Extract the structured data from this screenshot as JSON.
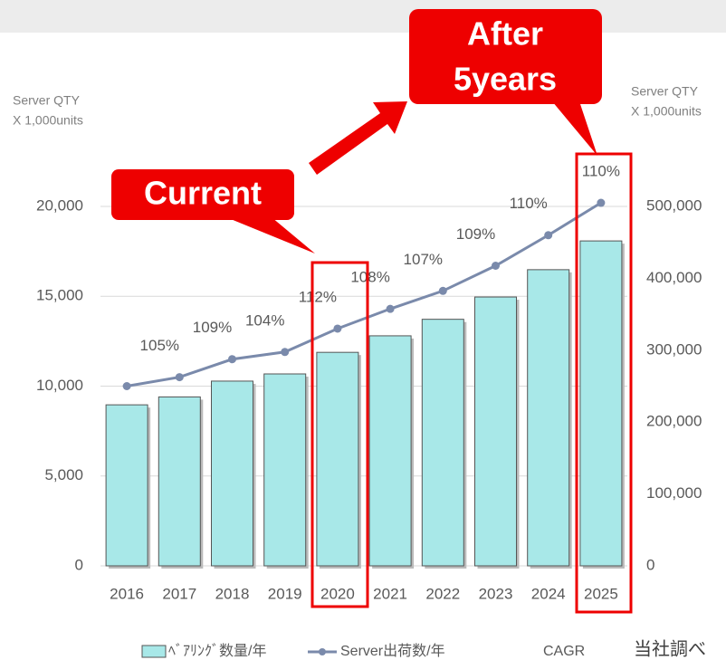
{
  "chart_data": {
    "type": "bar-line",
    "y_label": [
      "Server QTY",
      "X 1,000units"
    ],
    "y2_label": [
      "Server QTY",
      "X 1,000units"
    ],
    "categories": [
      "2016",
      "2017",
      "2018",
      "2019",
      "2020",
      "2021",
      "2022",
      "2023",
      "2024",
      "2025"
    ],
    "series": [
      {
        "name": "ﾍﾞｱﾘﾝｸﾞ数量/年",
        "type": "bar",
        "axis": "y2",
        "color": "#a8e8e8",
        "values": [
          224000,
          235000,
          257000,
          267000,
          297000,
          320000,
          343000,
          374000,
          412000,
          452000
        ]
      },
      {
        "name": "Server出荷数/年",
        "type": "line",
        "axis": "y",
        "color": "#7a8aab",
        "values": [
          10000,
          10500,
          11500,
          11900,
          13200,
          14300,
          15300,
          16700,
          18400,
          20200
        ],
        "value_labels": [
          null,
          "105%",
          "109%",
          "104%",
          "112%",
          "108%",
          "107%",
          "109%",
          "110%",
          "110%"
        ]
      }
    ],
    "ylim": [
      0,
      20000
    ],
    "yticks": [
      0,
      {
        "value": 5000,
        "label": "5,000"
      },
      {
        "value": 10000,
        "label": "10,000"
      },
      {
        "value": 15000,
        "label": "15,000"
      },
      {
        "value": 20000,
        "label": "20,000"
      }
    ],
    "y2lim": [
      0,
      500000
    ],
    "y2ticks": [
      0,
      {
        "value": 100000,
        "label": "100,000"
      },
      {
        "value": 200000,
        "label": "200,000"
      },
      {
        "value": 300000,
        "label": "300,000"
      },
      {
        "value": 400000,
        "label": "400,000"
      },
      {
        "value": 500000,
        "label": "500,000"
      }
    ],
    "grid": true,
    "legend_extra": "CAGR",
    "source": "当社調べ",
    "callouts": [
      {
        "text": "Current"
      },
      {
        "lines": [
          "After",
          "5years"
        ]
      }
    ]
  }
}
